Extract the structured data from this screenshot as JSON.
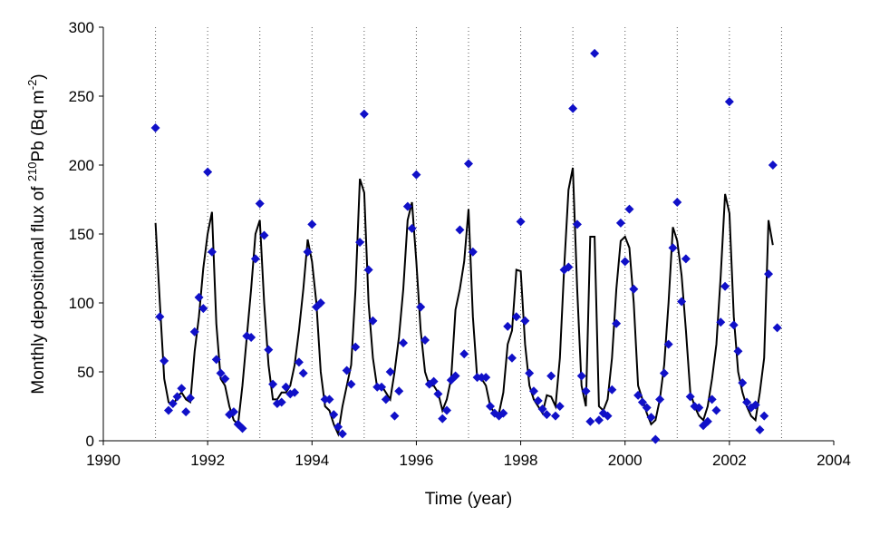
{
  "chart_data": {
    "type": "scatter",
    "xlabel": "Time (year)",
    "ylabel": "Monthly depositional flux of ²¹⁰Pb (Bq m⁻²)",
    "ylabel_parts": {
      "pre": "Monthly depositional flux of ",
      "sup1": "210",
      "mid": "Pb (Bq m",
      "sup2": "-2",
      "post": ")"
    },
    "xlim": [
      1990,
      2004
    ],
    "ylim": [
      0,
      300
    ],
    "xticks": [
      1990,
      1992,
      1994,
      1996,
      1998,
      2000,
      2002,
      2004
    ],
    "yticks": [
      0,
      50,
      100,
      150,
      200,
      250,
      300
    ],
    "grid": "vertical dotted lines at each year",
    "start_year": 1991,
    "colors": {
      "points": "#1010c8",
      "line": "#000000"
    },
    "series": [
      {
        "kind": "points",
        "marker": "diamond",
        "values": [
          227,
          90,
          58,
          22,
          27,
          32,
          38,
          21,
          31,
          79,
          104,
          96,
          195,
          137,
          59,
          49,
          45,
          19,
          21,
          12,
          9,
          76,
          75,
          132,
          172,
          149,
          66,
          41,
          27,
          28,
          39,
          34,
          35,
          57,
          49,
          137,
          157,
          97,
          100,
          30,
          30,
          19,
          10,
          5,
          51,
          41,
          68,
          144,
          237,
          124,
          87,
          39,
          39,
          30,
          50,
          18,
          36,
          71,
          170,
          154,
          193,
          97,
          73,
          41,
          43,
          34,
          16,
          22,
          44,
          47,
          153,
          63,
          201,
          137,
          46,
          46,
          46,
          25,
          20,
          18,
          20,
          83,
          60,
          90,
          159,
          87,
          49,
          36,
          29,
          23,
          19,
          47,
          18,
          25,
          124,
          126,
          241,
          157,
          47,
          36,
          14,
          281,
          15,
          20,
          18,
          37,
          85,
          158,
          130,
          168,
          110,
          33,
          28,
          24,
          17,
          1,
          30,
          49,
          70,
          140,
          173,
          101,
          132,
          32,
          25,
          24,
          11,
          14,
          30,
          22,
          86,
          112,
          246,
          84,
          65,
          42,
          28,
          24,
          26,
          8,
          18,
          121,
          200,
          82
        ]
      },
      {
        "kind": "line",
        "values": [
          158,
          100,
          45,
          28,
          25,
          32,
          35,
          30,
          28,
          65,
          90,
          125,
          150,
          166,
          85,
          45,
          40,
          25,
          15,
          12,
          40,
          75,
          110,
          150,
          160,
          100,
          55,
          30,
          30,
          35,
          35,
          40,
          55,
          80,
          110,
          146,
          130,
          100,
          50,
          25,
          22,
          12,
          5,
          25,
          40,
          55,
          110,
          190,
          180,
          100,
          60,
          38,
          40,
          35,
          30,
          50,
          75,
          110,
          160,
          173,
          130,
          80,
          50,
          40,
          40,
          35,
          22,
          30,
          45,
          95,
          110,
          130,
          168,
          90,
          45,
          45,
          40,
          25,
          20,
          20,
          35,
          70,
          80,
          124,
          123,
          70,
          40,
          30,
          25,
          20,
          33,
          32,
          25,
          60,
          125,
          182,
          198,
          110,
          40,
          25,
          148,
          148,
          25,
          22,
          30,
          60,
          110,
          145,
          148,
          140,
          100,
          40,
          30,
          20,
          12,
          15,
          30,
          55,
          100,
          155,
          145,
          120,
          80,
          35,
          25,
          18,
          15,
          25,
          45,
          70,
          120,
          179,
          165,
          90,
          50,
          35,
          25,
          18,
          15,
          35,
          60,
          160,
          142
        ]
      }
    ]
  }
}
